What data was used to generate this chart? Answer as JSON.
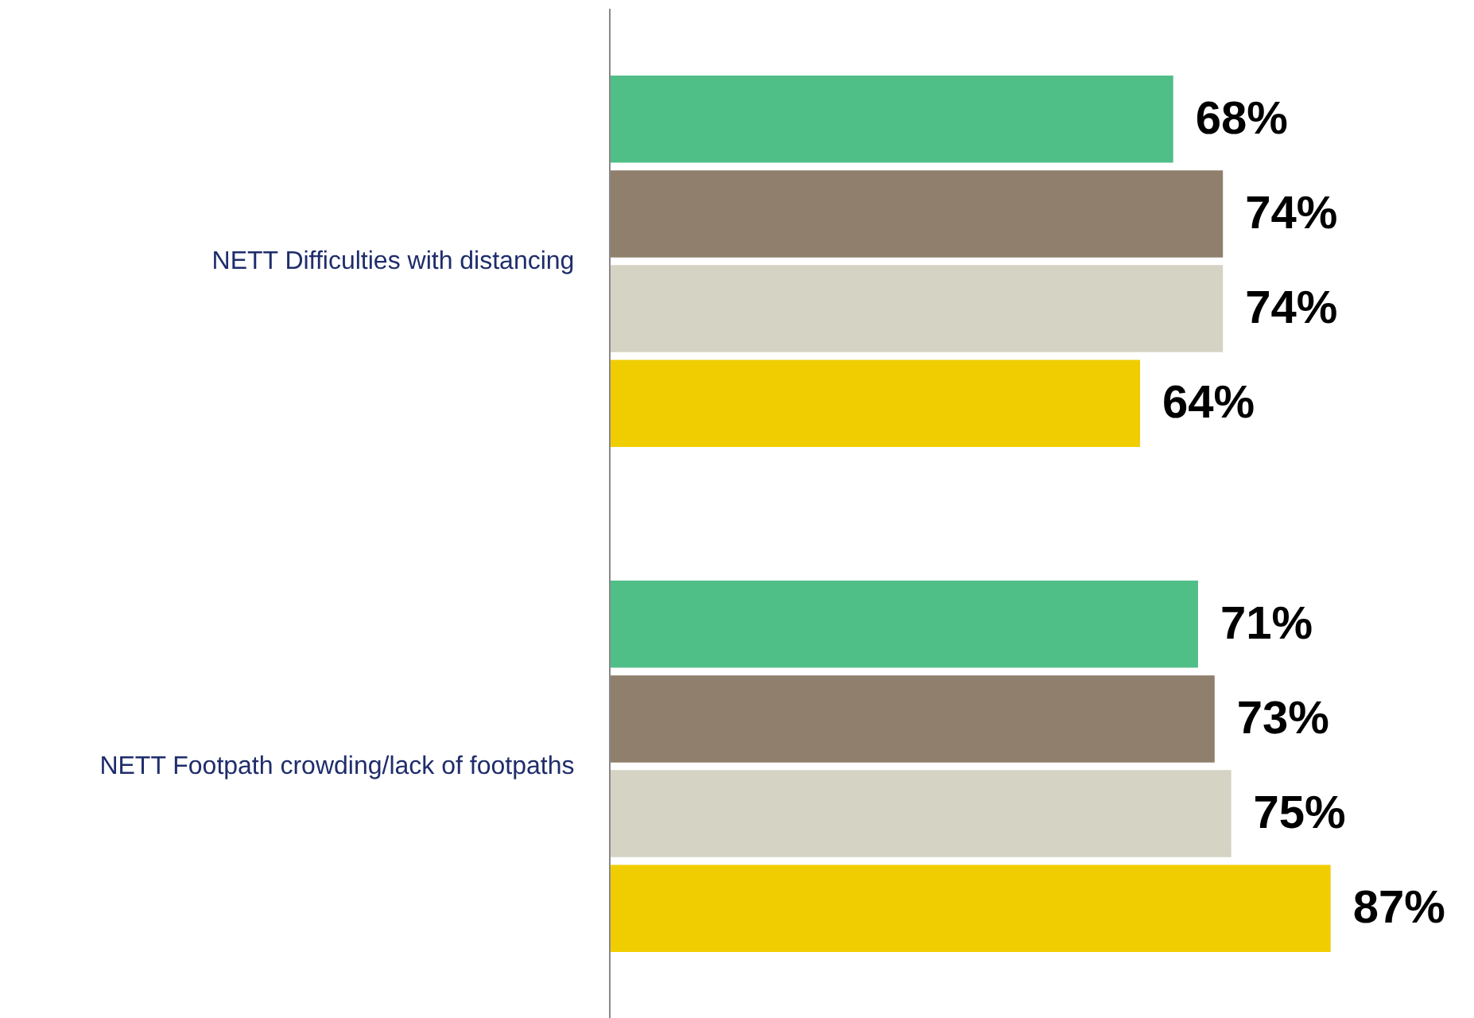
{
  "chart_data": {
    "type": "bar",
    "orientation": "horizontal",
    "categories": [
      "NETT Difficulties with distancing",
      "NETT Footpath crowding/lack of footpaths"
    ],
    "series": [
      {
        "color": "#50be87",
        "values": [
          68,
          71
        ],
        "value_labels": [
          "68%",
          "71%"
        ]
      },
      {
        "color": "#8f7f6c",
        "values": [
          74,
          73
        ],
        "value_labels": [
          "74%",
          "73%"
        ]
      },
      {
        "color": "#d5d3c3",
        "values": [
          74,
          75
        ],
        "value_labels": [
          "74%",
          "75%"
        ]
      },
      {
        "color": "#f0cd00",
        "values": [
          64,
          87
        ],
        "value_labels": [
          "64%",
          "87%"
        ]
      }
    ],
    "grid": false
  }
}
